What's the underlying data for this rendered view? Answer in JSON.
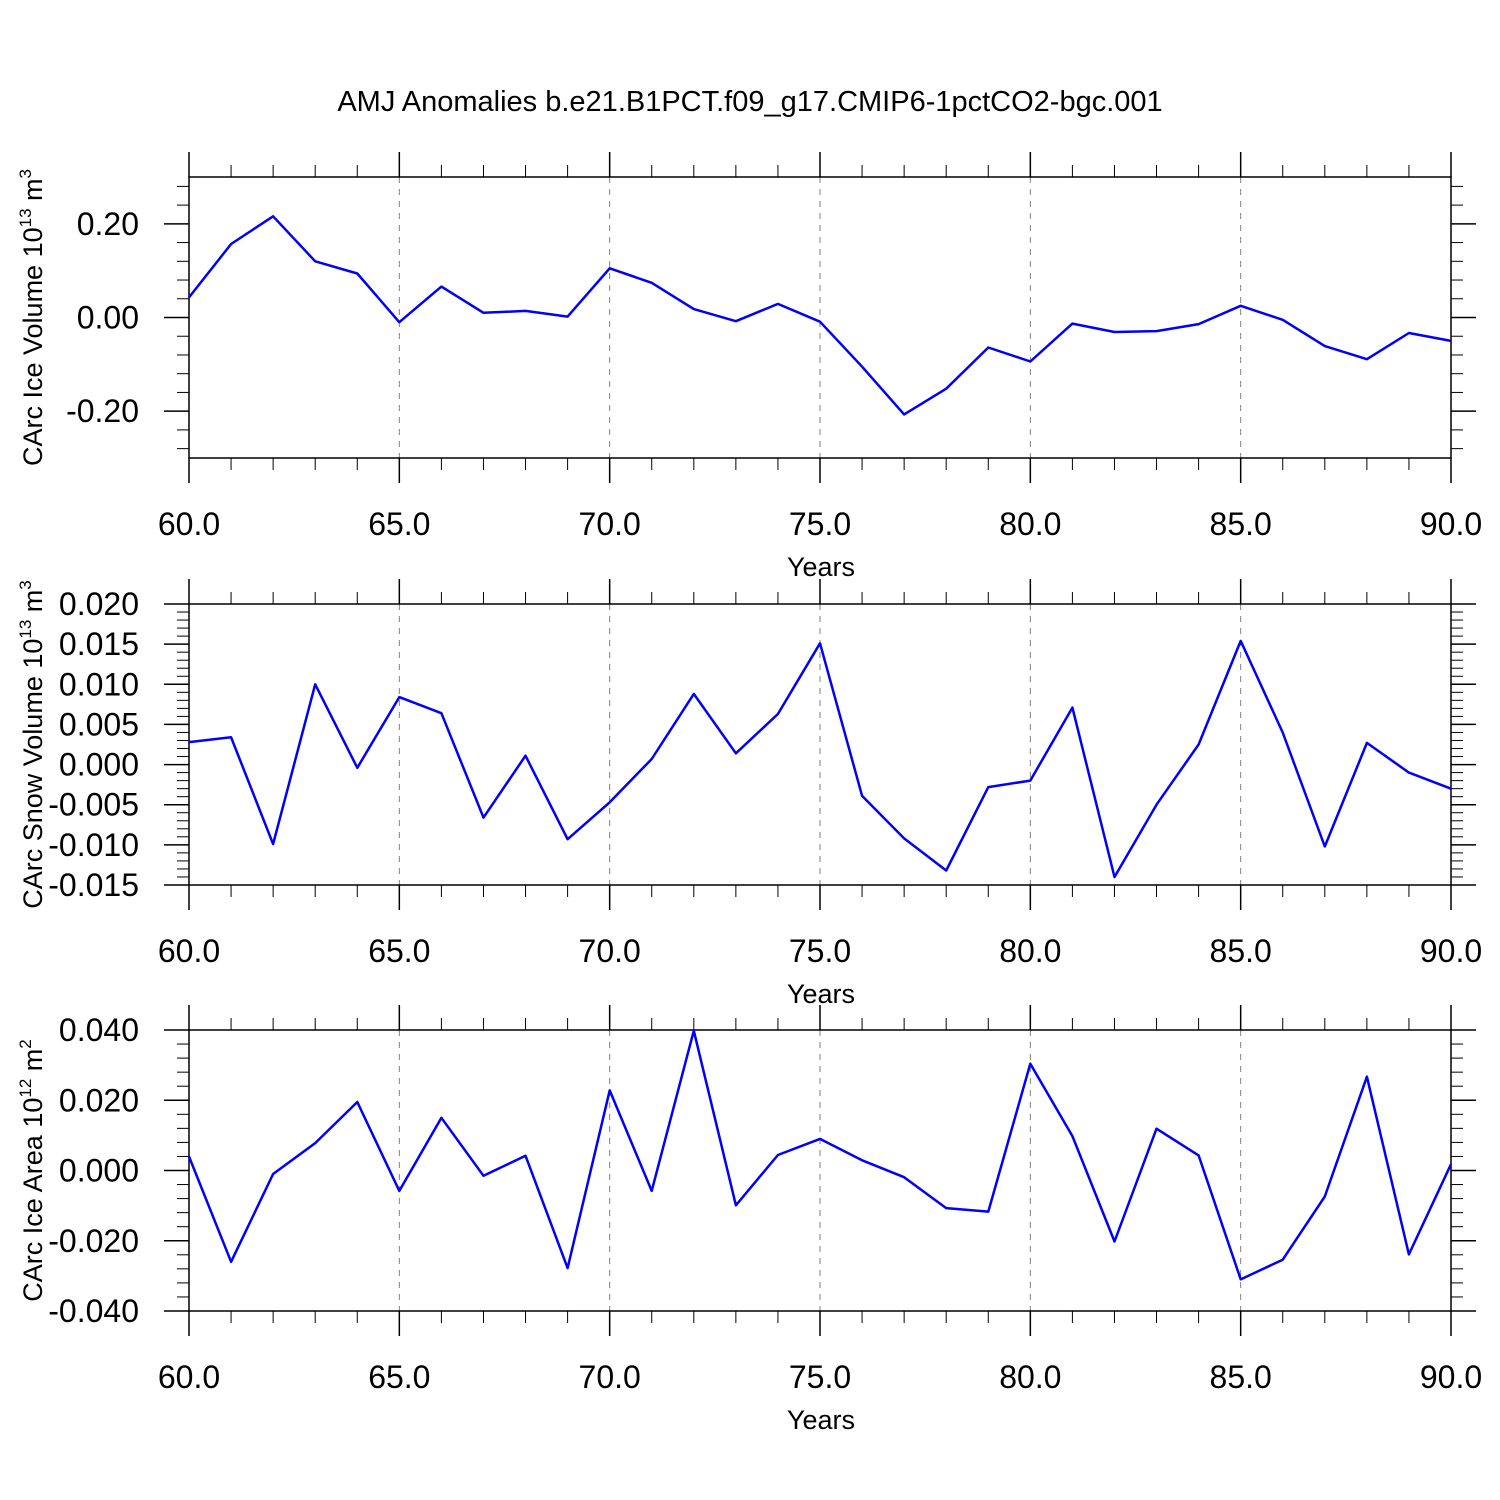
{
  "title": "AMJ Anomalies b.e21.B1PCT.f09_g17.CMIP6-1pctCO2-bgc.001",
  "colors": {
    "line": "#0000ff",
    "axis": "#000000",
    "grid": "#808080"
  },
  "chart_data": [
    {
      "type": "line",
      "xlabel": "Years",
      "ylabel": "CArc Ice Volume 10",
      "ylabel_sup": "13",
      "ylabel_unit": "m",
      "ylabel_unit_sup": "3",
      "xlim": [
        60,
        90
      ],
      "ylim": [
        -0.3,
        0.3
      ],
      "xticks": [
        60,
        65,
        70,
        75,
        80,
        85,
        90
      ],
      "xtick_labels": [
        "60.0",
        "65.0",
        "70.0",
        "75.0",
        "80.0",
        "85.0",
        "90.0"
      ],
      "yticks": [
        -0.2,
        0.0,
        0.2
      ],
      "ytick_labels": [
        "-0.20",
        "0.00",
        "0.20"
      ],
      "grid": "vertical-dashed",
      "x": [
        60,
        61,
        62,
        63,
        64,
        65,
        66,
        67,
        68,
        69,
        70,
        71,
        72,
        73,
        74,
        75,
        76,
        77,
        78,
        79,
        80,
        81,
        82,
        83,
        84,
        85,
        86,
        87,
        88,
        89,
        90
      ],
      "series": [
        {
          "values": [
            0.043,
            0.157,
            0.216,
            0.12,
            0.094,
            -0.01,
            0.066,
            0.01,
            0.014,
            0.002,
            0.105,
            0.074,
            0.018,
            -0.008,
            0.029,
            -0.009,
            -0.105,
            -0.207,
            -0.152,
            -0.064,
            -0.094,
            -0.013,
            -0.031,
            -0.029,
            -0.014,
            0.025,
            -0.005,
            -0.061,
            -0.089,
            -0.033,
            -0.05
          ]
        }
      ]
    },
    {
      "type": "line",
      "xlabel": "Years",
      "ylabel": "CArc Snow Volume 10",
      "ylabel_sup": "13",
      "ylabel_unit": "m",
      "ylabel_unit_sup": "3",
      "xlim": [
        60,
        90
      ],
      "ylim": [
        -0.015,
        0.02
      ],
      "xticks": [
        60,
        65,
        70,
        75,
        80,
        85,
        90
      ],
      "xtick_labels": [
        "60.0",
        "65.0",
        "70.0",
        "75.0",
        "80.0",
        "85.0",
        "90.0"
      ],
      "yticks": [
        -0.015,
        -0.01,
        -0.005,
        0.0,
        0.005,
        0.01,
        0.015,
        0.02
      ],
      "ytick_labels": [
        "-0.015",
        "-0.010",
        "-0.005",
        "0.000",
        "0.005",
        "0.010",
        "0.015",
        "0.020"
      ],
      "grid": "vertical-dashed",
      "x": [
        60,
        61,
        62,
        63,
        64,
        65,
        66,
        67,
        68,
        69,
        70,
        71,
        72,
        73,
        74,
        75,
        76,
        77,
        78,
        79,
        80,
        81,
        82,
        83,
        84,
        85,
        86,
        87,
        88,
        89,
        90
      ],
      "series": [
        {
          "values": [
            0.0028,
            0.0034,
            -0.0099,
            0.01,
            -0.0004,
            0.0084,
            0.0064,
            -0.0066,
            0.0011,
            -0.0093,
            -0.0047,
            0.0007,
            0.0088,
            0.0014,
            0.0063,
            0.0151,
            -0.0039,
            -0.0092,
            -0.0132,
            -0.0028,
            -0.002,
            0.0071,
            -0.014,
            -0.005,
            0.0025,
            0.0154,
            0.004,
            -0.0102,
            0.0027,
            -0.001,
            -0.003
          ]
        }
      ]
    },
    {
      "type": "line",
      "xlabel": "Years",
      "ylabel": "CArc Ice Area 10",
      "ylabel_sup": "12",
      "ylabel_unit": "m",
      "ylabel_unit_sup": "2",
      "xlim": [
        60,
        90
      ],
      "ylim": [
        -0.04,
        0.04
      ],
      "xticks": [
        60,
        65,
        70,
        75,
        80,
        85,
        90
      ],
      "xtick_labels": [
        "60.0",
        "65.0",
        "70.0",
        "75.0",
        "80.0",
        "85.0",
        "90.0"
      ],
      "yticks": [
        -0.04,
        -0.02,
        0.0,
        0.02,
        0.04
      ],
      "ytick_labels": [
        "-0.040",
        "-0.020",
        "0.000",
        "0.020",
        "0.040"
      ],
      "grid": "vertical-dashed",
      "x": [
        60,
        61,
        62,
        63,
        64,
        65,
        66,
        67,
        68,
        69,
        70,
        71,
        72,
        73,
        74,
        75,
        76,
        77,
        78,
        79,
        80,
        81,
        82,
        83,
        84,
        85,
        86,
        87,
        88,
        89,
        90
      ],
      "series": [
        {
          "values": [
            0.004,
            -0.026,
            -0.001,
            0.0078,
            0.0195,
            -0.0058,
            0.015,
            -0.0015,
            0.0042,
            -0.0278,
            0.0228,
            -0.0058,
            0.0398,
            -0.0099,
            0.0044,
            0.009,
            0.0029,
            -0.0019,
            -0.0107,
            -0.0117,
            0.0304,
            0.0098,
            -0.0202,
            0.0119,
            0.0043,
            -0.031,
            -0.0254,
            -0.0074,
            0.0267,
            -0.0239,
            0.0018
          ]
        }
      ]
    }
  ]
}
